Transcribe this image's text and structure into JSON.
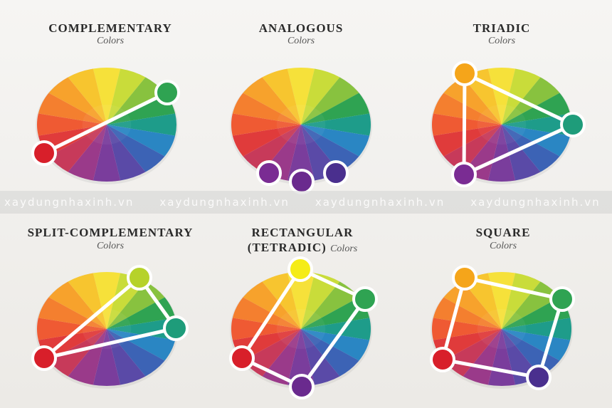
{
  "colors": {
    "wheel_segments": [
      "#f6e13a",
      "#c9dc3a",
      "#88c23f",
      "#2fa352",
      "#1e9c8a",
      "#2a86c3",
      "#3c63b5",
      "#5a4aa7",
      "#7a3d9c",
      "#9a3a8a",
      "#c73a5a",
      "#e03b3b",
      "#ef5a33",
      "#f47f2f",
      "#f7a22c",
      "#f7c52f"
    ],
    "line": "#ffffff"
  },
  "panels": [
    {
      "id": "complementary",
      "title": "COMPLEMENTARY",
      "subtitle": "Colors",
      "dots": [
        {
          "color": "#2fa352",
          "name": "green-dot"
        },
        {
          "color": "#d81f2a",
          "name": "red-dot"
        }
      ]
    },
    {
      "id": "analogous",
      "title": "ANALOGOUS",
      "subtitle": "Colors",
      "dots": [
        {
          "color": "#7a2c93",
          "name": "violet-dot-1"
        },
        {
          "color": "#6a2a8e",
          "name": "violet-dot-2"
        },
        {
          "color": "#4a2f8e",
          "name": "indigo-dot"
        }
      ]
    },
    {
      "id": "triadic",
      "title": "TRIADIC",
      "subtitle": "Colors",
      "dots": [
        {
          "color": "#f5a51a",
          "name": "orange-dot"
        },
        {
          "color": "#1e9c7a",
          "name": "teal-dot"
        },
        {
          "color": "#7a2c93",
          "name": "purple-dot"
        }
      ]
    },
    {
      "id": "split-complementary",
      "title": "SPLIT-COMPLEMENTARY",
      "subtitle": "Colors",
      "dots": [
        {
          "color": "#b6d22a",
          "name": "yellow-green-dot"
        },
        {
          "color": "#1e9c7a",
          "name": "teal-dot"
        },
        {
          "color": "#d81f2a",
          "name": "red-dot"
        }
      ]
    },
    {
      "id": "rectangular",
      "title": "RECTANGULAR",
      "title_line2": "(TETRADIC)",
      "subtitle": "Colors",
      "dots": [
        {
          "color": "#f5ec16",
          "name": "yellow-dot"
        },
        {
          "color": "#2fa352",
          "name": "green-dot"
        },
        {
          "color": "#6a2a8e",
          "name": "purple-dot"
        },
        {
          "color": "#d81f2a",
          "name": "red-dot"
        }
      ]
    },
    {
      "id": "square",
      "title": "SQUARE",
      "subtitle": "Colors",
      "dots": [
        {
          "color": "#f5a51a",
          "name": "orange-dot"
        },
        {
          "color": "#2fa352",
          "name": "green-dot"
        },
        {
          "color": "#4a2f8e",
          "name": "indigo-dot"
        },
        {
          "color": "#d81f2a",
          "name": "red-dot"
        }
      ]
    }
  ],
  "watermark": {
    "text": "xaydungnhaxinh.vn",
    "tail": "xaydung"
  }
}
